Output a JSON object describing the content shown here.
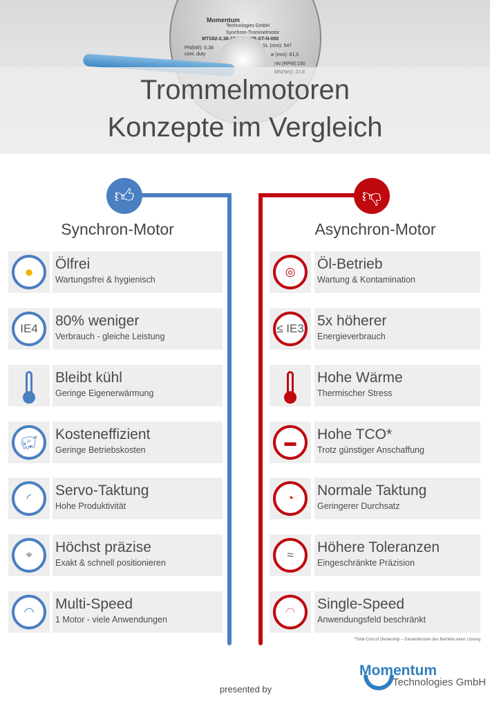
{
  "header": {
    "title_line1": "Trommelmotoren",
    "title_line2": "Konzepte im Vergleich",
    "motor_label": {
      "brand": "Momentum",
      "company": "Technologies GmbH",
      "type": "Synchron-Trommelmotor",
      "model": "MTS82-0,38-150-547-CR-ST-N-000",
      "power": "PN(kW): 0,38",
      "duty": "cont. duty",
      "sl": "SL (mm): 547",
      "diameter": "ø (mm): 81,5",
      "rpm": "nN (RPM):150",
      "torque": "MN(Nm): 22,8"
    }
  },
  "colors": {
    "blue": "#4a7fc1",
    "red": "#c0080f",
    "box": "#eeeeee"
  },
  "left": {
    "heading": "Synchron-Motor",
    "icon": "thumbs-up-icon",
    "items": [
      {
        "icon": "no-oil-icon",
        "title": "Ölfrei",
        "sub": "Wartungsfrei & hygienisch"
      },
      {
        "icon": "ie4-icon",
        "icon_text": "IE4",
        "title": "80% weniger",
        "sub": "Verbrauch - gleiche Leistung"
      },
      {
        "icon": "thermometer-low-icon",
        "title": "Bleibt kühl",
        "sub": "Geringe Eigenerwärmung"
      },
      {
        "icon": "piggy-bank-icon",
        "title": "Kosteneffizient",
        "sub": "Geringe Betriebskosten"
      },
      {
        "icon": "fast-cycle-icon",
        "title": "Servo-Taktung",
        "sub": "Hohe Produktivität"
      },
      {
        "icon": "target-icon",
        "title": "Höchst präzise",
        "sub": "Exakt & schnell positionieren"
      },
      {
        "icon": "multi-speed-icon",
        "title": "Multi-Speed",
        "sub": "1 Motor - viele Anwendungen"
      }
    ]
  },
  "right": {
    "heading": "Asynchron-Motor",
    "icon": "thumbs-down-icon",
    "items": [
      {
        "icon": "oil-bath-icon",
        "title": "Öl-Betrieb",
        "sub": "Wartung & Kontamination"
      },
      {
        "icon": "ie3-icon",
        "icon_text": "≤ IE3",
        "title": "5x höherer",
        "sub": "Energieverbrauch"
      },
      {
        "icon": "thermometer-high-icon",
        "title": "Hohe Wärme",
        "sub": "Thermischer Stress"
      },
      {
        "icon": "money-icon",
        "title": "Hohe TCO*",
        "sub": "Trotz günstiger Anschaffung"
      },
      {
        "icon": "slow-cycle-icon",
        "title": "Normale Taktung",
        "sub": "Geringerer Durchsatz"
      },
      {
        "icon": "approx-icon",
        "icon_text": "≈",
        "title": "Höhere Toleranzen",
        "sub": "Eingeschränkte Präzision"
      },
      {
        "icon": "single-speed-icon",
        "title": "Single-Speed",
        "sub": "Anwendungsfeld beschränkt"
      }
    ]
  },
  "footnote": "*Total Cost of Ownership – Gesamtkosten des Betriebs einer Lösung",
  "presented_by": "presented by",
  "logo": {
    "brand": "Momentum",
    "company": "Technologies GmbH"
  }
}
